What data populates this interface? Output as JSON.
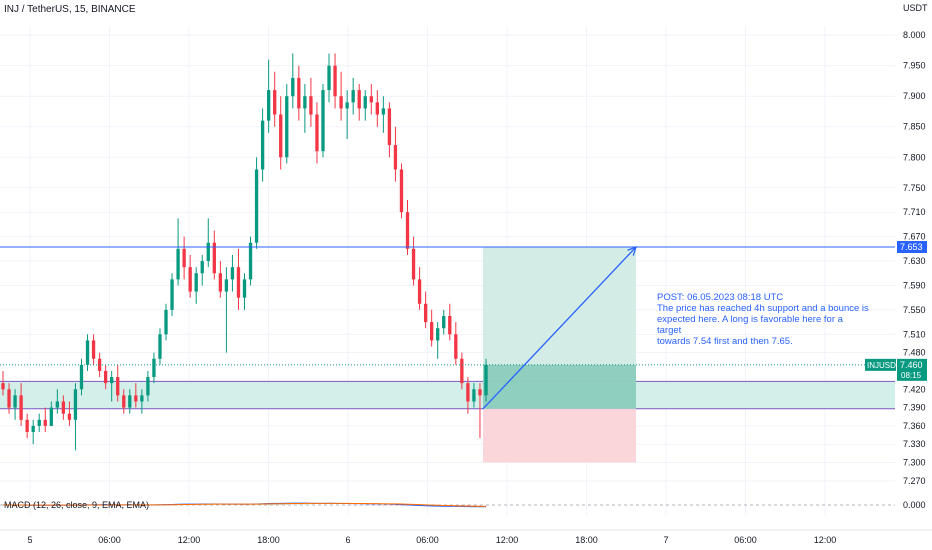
{
  "header": {
    "title": "INJ / TetherUS, 15, BINANCE"
  },
  "axis": {
    "currency": "USDT"
  },
  "annotation": {
    "lines": [
      "POST: 06.05.2023 08:18 UTC",
      "The price has reached 4h support and a bounce is",
      "expected here. A long is favorable here for a target",
      "towards 7.54 first and then 7.65."
    ]
  },
  "price_badges": {
    "level": "7.653",
    "symbol": "INJUSDT",
    "last": "7.460",
    "countdown": "08:15"
  },
  "macd": {
    "label": "MACD (12, 26, close, 9, EMA, EMA)",
    "zero_label": "0.000"
  },
  "colors": {
    "up": "#089981",
    "down": "#f23645",
    "accent": "#2962ff",
    "zone": "#9ed9cd",
    "profit": "#cde9e2",
    "loss": "#f9d2d6",
    "zone_border": "#7e57c2"
  },
  "chart_data": {
    "type": "candlestick",
    "title": "INJ / TetherUS, 15, BINANCE",
    "y_ticks": [
      "8.000",
      "7.950",
      "7.900",
      "7.850",
      "7.800",
      "7.750",
      "7.710",
      "7.670",
      "7.630",
      "7.590",
      "7.550",
      "7.510",
      "7.480",
      "7.420",
      "7.390",
      "7.360",
      "7.330",
      "7.300",
      "7.270"
    ],
    "x_ticks": [
      "5",
      "06:00",
      "12:00",
      "18:00",
      "6",
      "06:00",
      "12:00",
      "18:00",
      "7",
      "06:00",
      "12:00"
    ],
    "ylim": [
      7.255,
      8.015
    ],
    "support_zone": [
      7.388,
      7.433
    ],
    "resistance_level": 7.653,
    "last_price": 7.46,
    "trade": {
      "entry": 7.388,
      "target": 7.653,
      "stop": 7.3
    },
    "candles": [
      [
        7.43,
        7.45,
        7.41,
        7.42
      ],
      [
        7.42,
        7.43,
        7.38,
        7.39
      ],
      [
        7.39,
        7.42,
        7.37,
        7.41
      ],
      [
        7.41,
        7.43,
        7.36,
        7.37
      ],
      [
        7.37,
        7.38,
        7.34,
        7.35
      ],
      [
        7.35,
        7.37,
        7.33,
        7.36
      ],
      [
        7.36,
        7.38,
        7.35,
        7.37
      ],
      [
        7.37,
        7.39,
        7.35,
        7.36
      ],
      [
        7.36,
        7.4,
        7.36,
        7.39
      ],
      [
        7.39,
        7.42,
        7.38,
        7.4
      ],
      [
        7.4,
        7.41,
        7.37,
        7.38
      ],
      [
        7.38,
        7.4,
        7.36,
        7.37
      ],
      [
        7.37,
        7.43,
        7.32,
        7.42
      ],
      [
        7.42,
        7.47,
        7.41,
        7.46
      ],
      [
        7.46,
        7.51,
        7.45,
        7.5
      ],
      [
        7.5,
        7.51,
        7.46,
        7.47
      ],
      [
        7.47,
        7.48,
        7.44,
        7.45
      ],
      [
        7.45,
        7.46,
        7.42,
        7.43
      ],
      [
        7.43,
        7.45,
        7.4,
        7.44
      ],
      [
        7.44,
        7.46,
        7.4,
        7.41
      ],
      [
        7.41,
        7.42,
        7.38,
        7.39
      ],
      [
        7.39,
        7.42,
        7.38,
        7.41
      ],
      [
        7.41,
        7.43,
        7.39,
        7.4
      ],
      [
        7.4,
        7.42,
        7.38,
        7.41
      ],
      [
        7.41,
        7.45,
        7.4,
        7.44
      ],
      [
        7.44,
        7.48,
        7.43,
        7.47
      ],
      [
        7.47,
        7.52,
        7.46,
        7.51
      ],
      [
        7.51,
        7.56,
        7.5,
        7.55
      ],
      [
        7.55,
        7.61,
        7.54,
        7.6
      ],
      [
        7.6,
        7.7,
        7.59,
        7.65
      ],
      [
        7.65,
        7.67,
        7.6,
        7.62
      ],
      [
        7.62,
        7.64,
        7.57,
        7.58
      ],
      [
        7.58,
        7.62,
        7.56,
        7.61
      ],
      [
        7.61,
        7.64,
        7.59,
        7.63
      ],
      [
        7.63,
        7.7,
        7.62,
        7.66
      ],
      [
        7.66,
        7.68,
        7.6,
        7.61
      ],
      [
        7.61,
        7.63,
        7.57,
        7.58
      ],
      [
        7.58,
        7.62,
        7.48,
        7.6
      ],
      [
        7.6,
        7.64,
        7.58,
        7.62
      ],
      [
        7.62,
        7.65,
        7.55,
        7.57
      ],
      [
        7.57,
        7.61,
        7.55,
        7.6
      ],
      [
        7.6,
        7.67,
        7.59,
        7.66
      ],
      [
        7.66,
        7.8,
        7.65,
        7.78
      ],
      [
        7.78,
        7.88,
        7.76,
        7.86
      ],
      [
        7.86,
        7.96,
        7.84,
        7.91
      ],
      [
        7.91,
        7.94,
        7.85,
        7.87
      ],
      [
        7.87,
        7.9,
        7.78,
        7.8
      ],
      [
        7.8,
        7.92,
        7.79,
        7.9
      ],
      [
        7.9,
        7.97,
        7.88,
        7.93
      ],
      [
        7.93,
        7.95,
        7.86,
        7.88
      ],
      [
        7.88,
        7.92,
        7.84,
        7.9
      ],
      [
        7.9,
        7.93,
        7.85,
        7.87
      ],
      [
        7.87,
        7.89,
        7.79,
        7.81
      ],
      [
        7.81,
        7.92,
        7.8,
        7.91
      ],
      [
        7.91,
        7.97,
        7.89,
        7.95
      ],
      [
        7.95,
        7.97,
        7.88,
        7.9
      ],
      [
        7.9,
        7.94,
        7.86,
        7.88
      ],
      [
        7.88,
        7.91,
        7.83,
        7.89
      ],
      [
        7.89,
        7.93,
        7.87,
        7.91
      ],
      [
        7.91,
        7.92,
        7.86,
        7.88
      ],
      [
        7.88,
        7.91,
        7.86,
        7.9
      ],
      [
        7.9,
        7.92,
        7.87,
        7.89
      ],
      [
        7.89,
        7.91,
        7.85,
        7.87
      ],
      [
        7.87,
        7.9,
        7.84,
        7.88
      ],
      [
        7.88,
        7.89,
        7.8,
        7.82
      ],
      [
        7.82,
        7.85,
        7.76,
        7.78
      ],
      [
        7.78,
        7.79,
        7.7,
        7.71
      ],
      [
        7.71,
        7.73,
        7.64,
        7.65
      ],
      [
        7.65,
        7.67,
        7.59,
        7.6
      ],
      [
        7.6,
        7.62,
        7.55,
        7.56
      ],
      [
        7.56,
        7.58,
        7.52,
        7.53
      ],
      [
        7.53,
        7.55,
        7.49,
        7.5
      ],
      [
        7.5,
        7.53,
        7.47,
        7.52
      ],
      [
        7.52,
        7.55,
        7.51,
        7.54
      ],
      [
        7.54,
        7.56,
        7.5,
        7.51
      ],
      [
        7.51,
        7.53,
        7.46,
        7.47
      ],
      [
        7.47,
        7.48,
        7.42,
        7.43
      ],
      [
        7.43,
        7.44,
        7.38,
        7.4
      ],
      [
        7.4,
        7.43,
        7.39,
        7.42
      ],
      [
        7.42,
        7.43,
        7.34,
        7.41
      ],
      [
        7.41,
        7.47,
        7.4,
        7.46
      ]
    ]
  }
}
